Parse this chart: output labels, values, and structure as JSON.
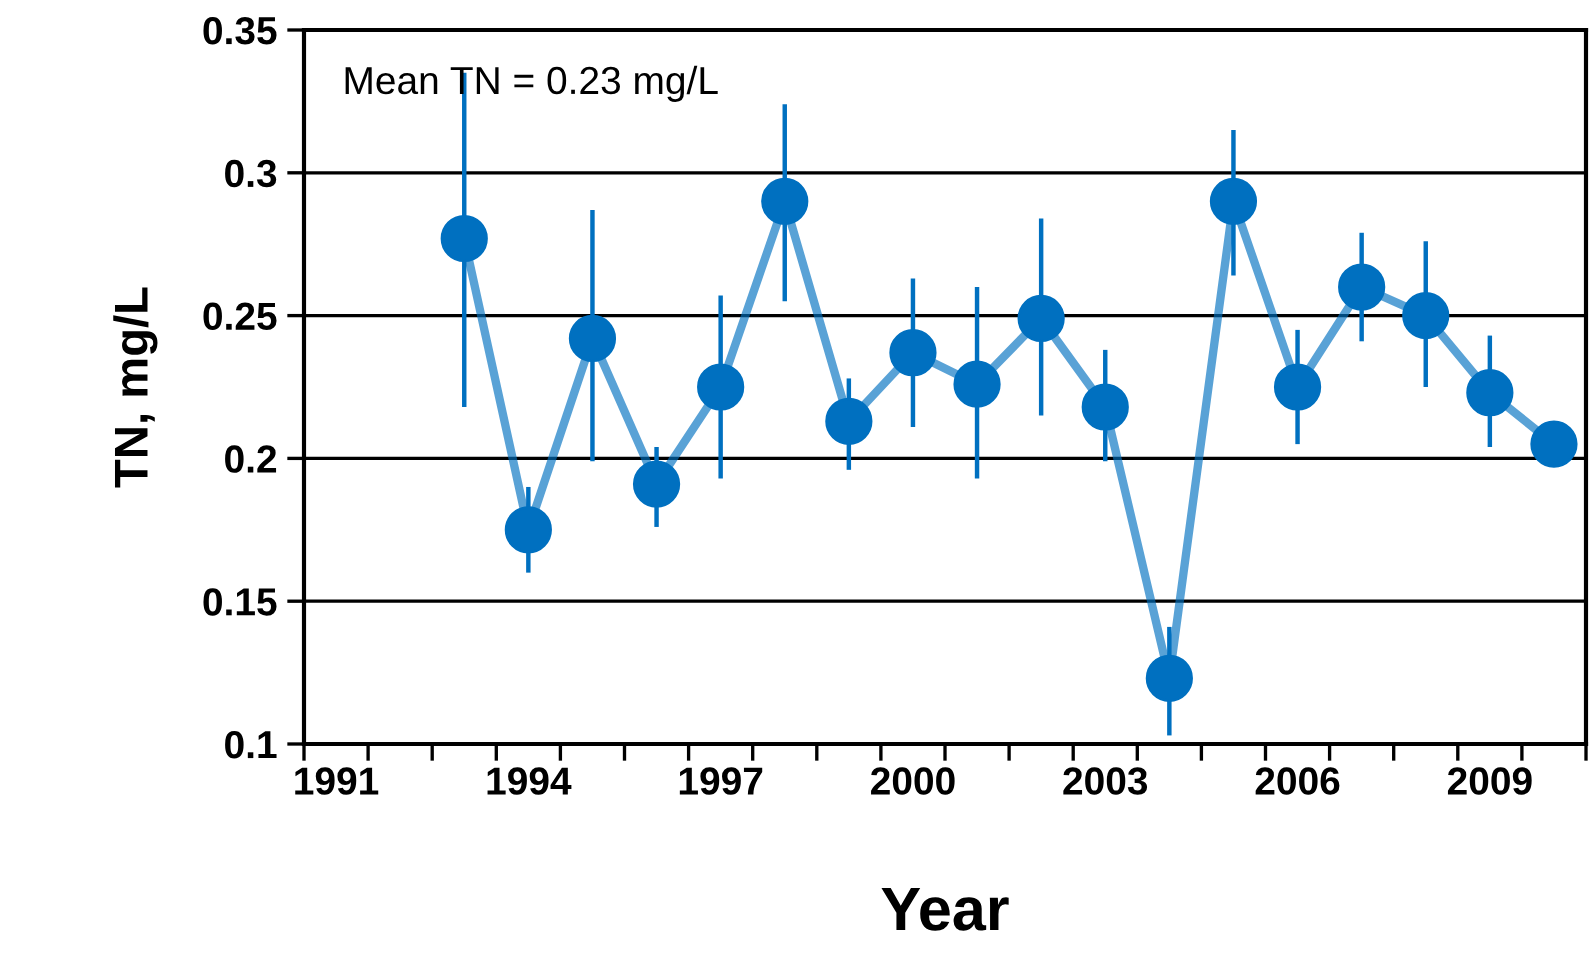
{
  "chart_data": {
    "type": "line",
    "xlabel": "Year",
    "ylabel": "TN, mg/L",
    "annotations": [
      "Mean TN = 0.23 mg/L"
    ],
    "categories": [
      "1991",
      null,
      null,
      "1994",
      null,
      null,
      "1997",
      null,
      null,
      "2000",
      null,
      null,
      "2003",
      null,
      null,
      "2006",
      null,
      null,
      "2009",
      null
    ],
    "series": [
      {
        "color": "#0070c0",
        "values": [
          null,
          null,
          0.277,
          0.175,
          0.242,
          0.191,
          0.225,
          0.29,
          0.213,
          0.237,
          0.226,
          0.249,
          0.218,
          0.123,
          0.29,
          0.225,
          0.26,
          0.25,
          0.223,
          0.205
        ],
        "errors": [
          null,
          null,
          [
            0.218,
            0.335
          ],
          [
            0.16,
            0.19
          ],
          [
            0.199,
            0.287
          ],
          [
            0.176,
            0.204
          ],
          [
            0.193,
            0.257
          ],
          [
            0.255,
            0.324
          ],
          [
            0.196,
            0.228
          ],
          [
            0.211,
            0.263
          ],
          [
            0.193,
            0.26
          ],
          [
            0.215,
            0.284
          ],
          [
            0.199,
            0.238
          ],
          [
            0.103,
            0.141
          ],
          [
            0.264,
            0.315
          ],
          [
            0.205,
            0.245
          ],
          [
            0.241,
            0.279
          ],
          [
            0.225,
            0.276
          ],
          [
            0.204,
            0.243
          ],
          [
            0.197,
            0.205
          ]
        ]
      }
    ],
    "ylim": [
      0.1,
      0.35
    ],
    "yticks": [
      0.1,
      0.15,
      0.2,
      0.25,
      0.3,
      0.35
    ],
    "grid": "y",
    "marker": "circle",
    "line_style": "solid",
    "legend": false
  }
}
